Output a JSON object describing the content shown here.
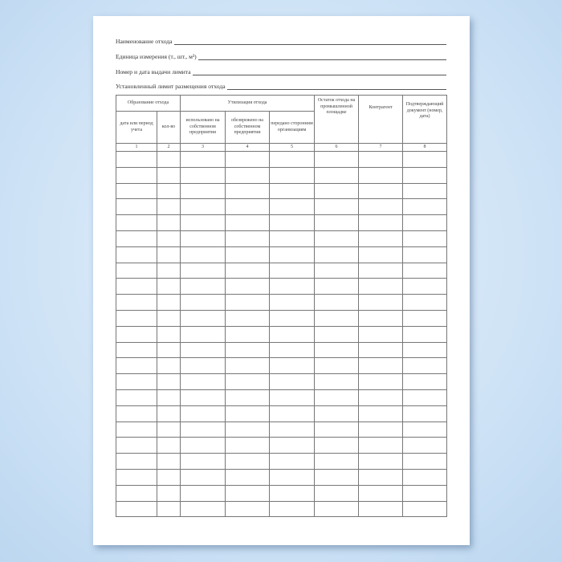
{
  "fields": [
    {
      "label": "Наименование отхода"
    },
    {
      "label": "Единица измерения (т., шт., м³)"
    },
    {
      "label": "Номер и дата выдачи лимита"
    },
    {
      "label": "Установленный лимит размещения отхода"
    }
  ],
  "table": {
    "group1": "Образование отхода",
    "group2": "Утилизация отхода",
    "col_ostatok": "Остаток отхода на промышленной площадке",
    "col_kontragent": "Контрагент",
    "col_document": "Подтверждающий документ (номер, дата)",
    "sub": [
      "дата или период учета",
      "кол-во",
      "использовано на собственном предприятии",
      "обезврежено на собственном предприятии",
      "передано сторонним организациям"
    ],
    "numbers": [
      "1",
      "2",
      "3",
      "4",
      "5",
      "6",
      "7",
      "8"
    ],
    "row_count": 23
  }
}
